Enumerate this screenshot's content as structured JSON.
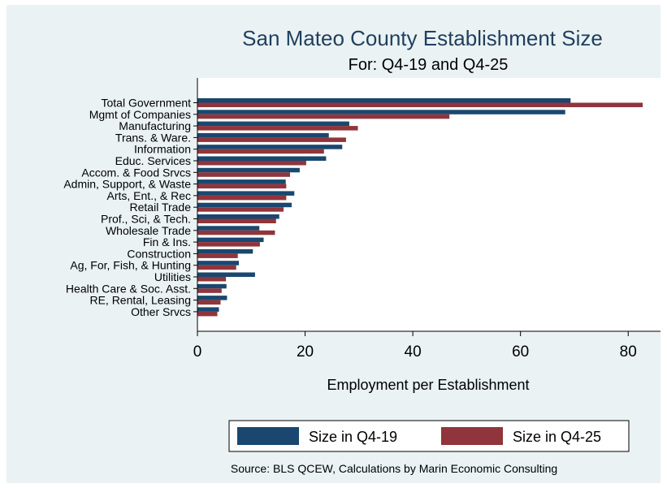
{
  "chart_data": {
    "type": "bar",
    "orientation": "horizontal",
    "title": "San Mateo County Establishment Size",
    "subtitle": "For: Q4-19 and Q4-25",
    "xlabel": "Employment per Establishment",
    "ylabel": "",
    "xlim": [
      0,
      86
    ],
    "xticks": [
      0,
      20,
      40,
      60,
      80
    ],
    "grid": false,
    "legend_position": "bottom",
    "categories": [
      "Total Government",
      "Mgmt of Companies",
      "Manufacturing",
      "Trans. & Ware.",
      "Information",
      "Educ. Services",
      "Accom. & Food Srvcs",
      "Admin, Support, & Waste",
      "Arts, Ent., & Rec",
      "Retail Trade",
      "Prof., Sci, & Tech.",
      "Wholesale Trade",
      "Fin & Ins.",
      "Construction",
      "Ag, For, Fish, & Hunting",
      "Utilities",
      "Health Care & Soc. Asst.",
      "RE, Rental, Leasing",
      "Other Srvcs"
    ],
    "series": [
      {
        "name": "Size in Q4-19",
        "color": "#1a476f",
        "values": [
          69.3,
          68.3,
          28.2,
          24.4,
          26.9,
          23.9,
          19.0,
          16.4,
          18.0,
          17.5,
          15.2,
          11.5,
          12.3,
          10.3,
          7.7,
          10.7,
          5.4,
          5.5,
          4.0
        ]
      },
      {
        "name": "Size in Q4-25",
        "color": "#90353b",
        "values": [
          82.7,
          46.8,
          29.8,
          27.6,
          23.5,
          20.2,
          17.2,
          16.5,
          16.5,
          16.0,
          14.6,
          14.4,
          11.6,
          7.5,
          7.2,
          5.3,
          4.5,
          4.3,
          3.7
        ]
      }
    ],
    "note": "Source: BLS QCEW, Calculations by Marin Economic Consulting"
  }
}
